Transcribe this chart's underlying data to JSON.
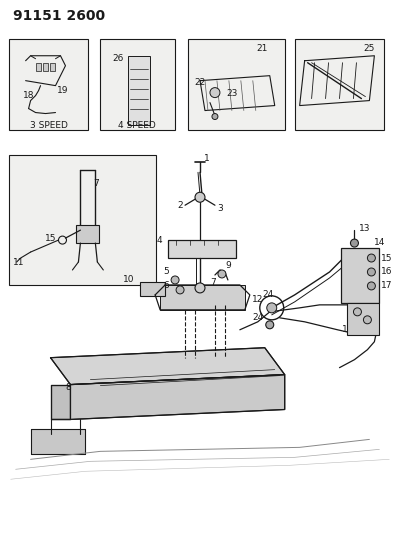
{
  "title": "91151 2600",
  "bg": "#f5f5f0",
  "fg": "#1a1a1a",
  "title_fontsize": 10,
  "label_fontsize": 6.8
}
